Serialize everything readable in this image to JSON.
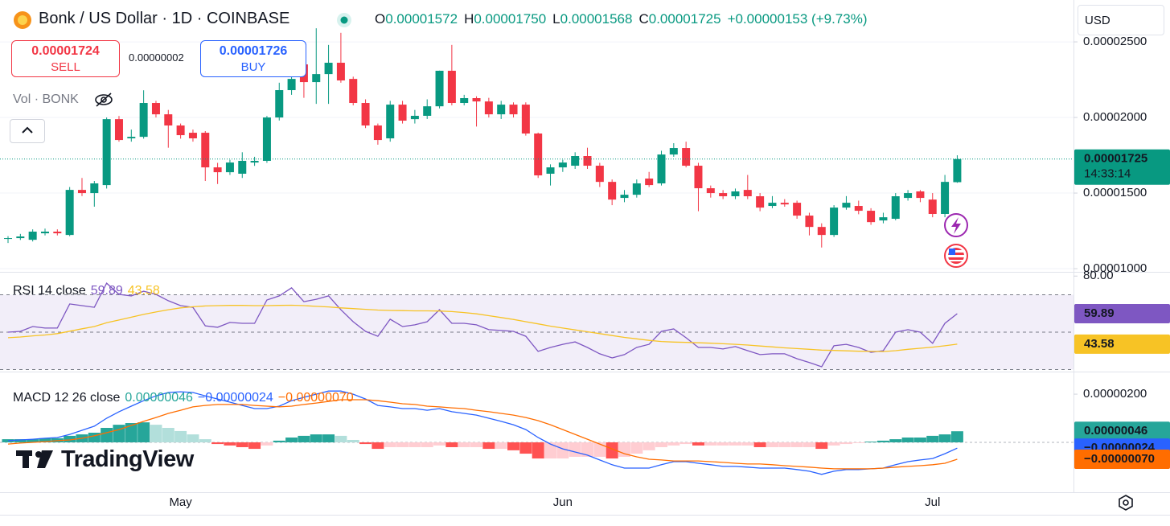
{
  "chart_data": [
    {
      "type": "candlestick",
      "title": "Bonk / US Dollar · 1D · COINBASE",
      "ohlc_legend": [
        {
          "label": "O",
          "value": "0.00001572"
        },
        {
          "label": "H",
          "value": "0.00001750"
        },
        {
          "label": "L",
          "value": "0.00001568"
        },
        {
          "label": "C",
          "value": "0.00001725"
        }
      ],
      "change": "+0.00000153 (+9.73%)",
      "sell": {
        "price": "0.00001724",
        "label": "SELL"
      },
      "spread": "0.00000002",
      "buy": {
        "price": "0.00001726",
        "label": "BUY"
      },
      "volume_label": "Vol · BONK",
      "currency": "USD",
      "last_price_label": "0.00001725",
      "countdown": "14:33:14",
      "brand": "TradingView",
      "up_color": "#089981",
      "down_color": "#f23645",
      "categories": [
        null,
        null,
        null,
        null,
        null,
        null,
        null,
        null,
        null,
        null,
        null,
        null,
        null,
        null,
        "May",
        null,
        null,
        null,
        null,
        null,
        null,
        null,
        null,
        null,
        null,
        null,
        null,
        null,
        null,
        null,
        null,
        null,
        null,
        null,
        null,
        null,
        null,
        null,
        null,
        null,
        null,
        null,
        null,
        null,
        null,
        "Jun",
        null,
        null,
        null,
        null,
        null,
        null,
        null,
        null,
        null,
        null,
        null,
        null,
        null,
        null,
        null,
        null,
        null,
        null,
        null,
        null,
        null,
        null,
        null,
        null,
        null,
        null,
        null,
        null,
        null,
        "Jul",
        null,
        null
      ],
      "open": [
        1.197e-05,
        1.202e-05,
        1.191e-05,
        1.234e-05,
        1.245e-05,
        1.223e-05,
        1.521e-05,
        1.5e-05,
        1.553e-05,
        1.989e-05,
        1.862e-05,
        1.872e-05,
        2.096e-05,
        2.021e-05,
        1.947e-05,
        1.899e-05,
        1.899e-05,
        1.67e-05,
        1.638e-05,
        1.628e-05,
        1.702e-05,
        1.713e-05,
        2e-05,
        2.181e-05,
        2.351e-05,
        2.234e-05,
        2.287e-05,
        2.362e-05,
        2.255e-05,
        2.096e-05,
        1.947e-05,
        1.862e-05,
        2.085e-05,
        1.989e-05,
        2.011e-05,
        2.074e-05,
        2.309e-05,
        2.096e-05,
        2.128e-05,
        2.106e-05,
        2.021e-05,
        2.085e-05,
        2.085e-05,
        1.894e-05,
        1.628e-05,
        1.67e-05,
        1.681e-05,
        1.745e-05,
        1.681e-05,
        1.574e-05,
        1.468e-05,
        1.489e-05,
        1.596e-05,
        1.564e-05,
        1.755e-05,
        1.798e-05,
        1.681e-05,
        1.532e-05,
        1.5e-05,
        1.479e-05,
        1.521e-05,
        1.479e-05,
        1.415e-05,
        1.436e-05,
        1.436e-05,
        1.351e-05,
        1.276e-05,
        1.223e-05,
        1.404e-05,
        1.415e-05,
        1.383e-05,
        1.319e-05,
        1.33e-05,
        1.468e-05,
        1.511e-05,
        1.457e-05,
        1.362e-05,
        1.572e-05
      ],
      "high": [
        1.215e-05,
        1.23e-05,
        1.26e-05,
        1.265e-05,
        1.26e-05,
        1.54e-05,
        1.6e-05,
        1.58e-05,
        2e-05,
        2.01e-05,
        1.92e-05,
        2.18e-05,
        2.11e-05,
        2.05e-05,
        1.96e-05,
        1.92e-05,
        1.91e-05,
        1.7e-05,
        1.72e-05,
        1.77e-05,
        1.74e-05,
        2.01e-05,
        2.23e-05,
        2.33e-05,
        2.48e-05,
        2.59e-05,
        2.48e-05,
        2.56e-05,
        2.27e-05,
        2.12e-05,
        1.96e-05,
        2.11e-05,
        2.11e-05,
        2.05e-05,
        2.12e-05,
        2.31e-05,
        2.48e-05,
        2.15e-05,
        2.14e-05,
        2.13e-05,
        2.11e-05,
        2.1e-05,
        2.1e-05,
        1.9e-05,
        1.69e-05,
        1.72e-05,
        1.77e-05,
        1.8e-05,
        1.7e-05,
        1.59e-05,
        1.52e-05,
        1.59e-05,
        1.64e-05,
        1.78e-05,
        1.83e-05,
        1.84e-05,
        1.7e-05,
        1.55e-05,
        1.52e-05,
        1.53e-05,
        1.62e-05,
        1.5e-05,
        1.48e-05,
        1.46e-05,
        1.45e-05,
        1.37e-05,
        1.3e-05,
        1.42e-05,
        1.48e-05,
        1.45e-05,
        1.4e-05,
        1.37e-05,
        1.5e-05,
        1.52e-05,
        1.52e-05,
        1.5e-05,
        1.62e-05,
        1.75e-05
      ],
      "low": [
        1.17e-05,
        1.19e-05,
        1.18e-05,
        1.22e-05,
        1.22e-05,
        1.215e-05,
        1.48e-05,
        1.41e-05,
        1.53e-05,
        1.84e-05,
        1.84e-05,
        1.86e-05,
        2e-05,
        1.8e-05,
        1.86e-05,
        1.84e-05,
        1.58e-05,
        1.56e-05,
        1.62e-05,
        1.6e-05,
        1.68e-05,
        1.7e-05,
        1.98e-05,
        2.15e-05,
        2.13e-05,
        2.09e-05,
        2.09e-05,
        2.23e-05,
        2.08e-05,
        1.93e-05,
        1.82e-05,
        1.84e-05,
        1.96e-05,
        1.96e-05,
        1.99e-05,
        2.06e-05,
        2.08e-05,
        2.08e-05,
        1.94e-05,
        2e-05,
        1.99e-05,
        2e-05,
        1.88e-05,
        1.6e-05,
        1.55e-05,
        1.64e-05,
        1.66e-05,
        1.66e-05,
        1.54e-05,
        1.42e-05,
        1.44e-05,
        1.47e-05,
        1.54e-05,
        1.55e-05,
        1.74e-05,
        1.67e-05,
        1.38e-05,
        1.47e-05,
        1.46e-05,
        1.46e-05,
        1.46e-05,
        1.38e-05,
        1.4e-05,
        1.41e-05,
        1.33e-05,
        1.22e-05,
        1.14e-05,
        1.21e-05,
        1.39e-05,
        1.36e-05,
        1.29e-05,
        1.3e-05,
        1.32e-05,
        1.45e-05,
        1.44e-05,
        1.34e-05,
        1.34e-05,
        1.568e-05
      ],
      "close": [
        1.202e-05,
        1.213e-05,
        1.245e-05,
        1.245e-05,
        1.234e-05,
        1.521e-05,
        1.5e-05,
        1.564e-05,
        1.989e-05,
        1.851e-05,
        1.872e-05,
        2.096e-05,
        2.021e-05,
        1.947e-05,
        1.883e-05,
        1.862e-05,
        1.67e-05,
        1.638e-05,
        1.702e-05,
        1.713e-05,
        1.713e-05,
        2e-05,
        2.181e-05,
        2.255e-05,
        2.234e-05,
        2.287e-05,
        2.362e-05,
        2.245e-05,
        2.096e-05,
        1.947e-05,
        1.851e-05,
        2.085e-05,
        1.979e-05,
        2.011e-05,
        2.074e-05,
        2.309e-05,
        2.096e-05,
        2.128e-05,
        2.106e-05,
        2.021e-05,
        2.085e-05,
        2.021e-05,
        1.894e-05,
        1.617e-05,
        1.67e-05,
        1.702e-05,
        1.745e-05,
        1.681e-05,
        1.574e-05,
        1.457e-05,
        1.489e-05,
        1.564e-05,
        1.553e-05,
        1.755e-05,
        1.798e-05,
        1.681e-05,
        1.532e-05,
        1.5e-05,
        1.479e-05,
        1.511e-05,
        1.479e-05,
        1.404e-05,
        1.436e-05,
        1.425e-05,
        1.351e-05,
        1.276e-05,
        1.223e-05,
        1.404e-05,
        1.436e-05,
        1.383e-05,
        1.308e-05,
        1.34e-05,
        1.479e-05,
        1.5e-05,
        1.468e-05,
        1.362e-05,
        1.574e-05,
        1.725e-05
      ],
      "ylim": [
        9.79e-06,
        2.777e-05
      ],
      "yticks": [
        {
          "value": 2.5e-05,
          "label": "0.00002500"
        },
        {
          "value": 2e-05,
          "label": "0.00002000"
        },
        {
          "value": 1.5e-05,
          "label": "0.00001500"
        },
        {
          "value": 1e-05,
          "label": "0.00001000"
        }
      ],
      "grid": true
    },
    {
      "type": "line",
      "title": "RSI 14 close",
      "series": [
        {
          "color": "#7e57c2",
          "value_label": "59.89",
          "values": [
            50.0,
            50.4,
            53.0,
            52.2,
            52.2,
            65.1,
            64.2,
            63.3,
            76.2,
            70.2,
            69.4,
            71.9,
            70.2,
            66.8,
            64.2,
            63.3,
            53.4,
            52.6,
            55.2,
            54.7,
            54.7,
            67.2,
            69.4,
            73.7,
            66.3,
            67.6,
            69.4,
            62.0,
            55.6,
            50.4,
            47.8,
            56.9,
            53.0,
            53.9,
            55.6,
            62.0,
            54.7,
            54.7,
            53.9,
            51.3,
            50.9,
            50.4,
            47.8,
            39.7,
            41.8,
            43.5,
            44.8,
            41.8,
            38.4,
            36.2,
            38.0,
            41.8,
            43.5,
            50.4,
            51.7,
            47.0,
            41.8,
            41.8,
            41.0,
            42.3,
            40.1,
            38.0,
            38.4,
            38.4,
            35.8,
            33.7,
            31.5,
            42.7,
            43.5,
            41.8,
            39.2,
            40.1,
            50.0,
            51.3,
            50.0,
            44.0,
            54.7,
            59.89
          ]
        },
        {
          "color": "#f7c325",
          "value_label": "43.58",
          "values": [
            47.0,
            47.4,
            48,
            48.5,
            49.2,
            50.5,
            51.8,
            53,
            55,
            56.5,
            58,
            59.5,
            60.8,
            62,
            63,
            63.6,
            64,
            64.2,
            64.3,
            64.3,
            64.2,
            64.2,
            64.3,
            64.4,
            64.2,
            63.8,
            63.5,
            63,
            62.6,
            62.2,
            61.8,
            61.6,
            61.5,
            61.4,
            61.4,
            61.3,
            61,
            60.5,
            59.8,
            58.8,
            57.8,
            56.8,
            55.6,
            54.4,
            53.2,
            52.2,
            51.2,
            50.2,
            49.2,
            48.2,
            47.2,
            46.4,
            45.6,
            45,
            44.7,
            44.5,
            44.3,
            44.1,
            43.8,
            43.5,
            43.1,
            42.6,
            42.1,
            41.6,
            41.2,
            40.8,
            40.4,
            40.2,
            40,
            39.8,
            39.7,
            39.6,
            40.1,
            40.8,
            41.4,
            42,
            42.7,
            43.58
          ]
        }
      ],
      "levels": [
        30,
        50,
        70
      ],
      "band_color": "#7e57c2",
      "ylim": [
        28.9,
        81.4
      ],
      "yticks": [
        {
          "value": 80,
          "label": "80.00"
        }
      ]
    },
    {
      "type": "macd",
      "title": "MACD 12 26 close",
      "histogram": {
        "value_label": "0.00000046",
        "colors": [
          "#26a69a",
          "#b2dfdb",
          "#ffcdd2",
          "#ff5252"
        ],
        "values": [
          1.3e-07,
          1.3e-07,
          1.3e-07,
          1.7e-07,
          1.7e-07,
          2.7e-07,
          3.3e-07,
          4e-07,
          6e-07,
          7.3e-07,
          8e-07,
          8.3e-07,
          7.3e-07,
          6e-07,
          4.7e-07,
          3.3e-07,
          1.3e-07,
          -7e-08,
          -1.3e-07,
          -2e-07,
          -2.7e-07,
          -1.3e-07,
          7e-08,
          2e-07,
          2.7e-07,
          3.3e-07,
          3.3e-07,
          2.7e-07,
          1e-07,
          -7e-08,
          -2.7e-07,
          -2e-07,
          -2e-07,
          -2e-07,
          -2e-07,
          -1.3e-07,
          -2e-07,
          -2e-07,
          -2e-07,
          -2.7e-07,
          -2.7e-07,
          -3.3e-07,
          -4.7e-07,
          -6.7e-07,
          -6.7e-07,
          -6.7e-07,
          -6e-07,
          -6e-07,
          -6e-07,
          -6.7e-07,
          -6e-07,
          -4.7e-07,
          -3.3e-07,
          -2e-07,
          -1.3e-07,
          -7e-08,
          -1.3e-07,
          -1.3e-07,
          -1.3e-07,
          -1.3e-07,
          -1.3e-07,
          -2e-07,
          -2e-07,
          -2e-07,
          -2e-07,
          -2e-07,
          -2.7e-07,
          -1.3e-07,
          -7e-08,
          -3e-08,
          3e-08,
          7e-08,
          1.3e-07,
          2e-07,
          2e-07,
          2.7e-07,
          3.3e-07,
          4.6e-07
        ]
      },
      "series": [
        {
          "color": "#2962ff",
          "value_label": "−0.00000024",
          "values": [
            7e-08,
            1e-07,
            1.3e-07,
            1.7e-07,
            2e-07,
            3.3e-07,
            5e-07,
            6.7e-07,
            1e-06,
            1.27e-06,
            1.5e-06,
            1.73e-06,
            1.93e-06,
            2.07e-06,
            2.1e-06,
            2.07e-06,
            1.93e-06,
            1.8e-06,
            1.67e-06,
            1.53e-06,
            1.4e-06,
            1.4e-06,
            1.5e-06,
            1.73e-06,
            1.87e-06,
            2e-06,
            2.13e-06,
            2.13e-06,
            2e-06,
            1.8e-06,
            1.53e-06,
            1.47e-06,
            1.4e-06,
            1.4e-06,
            1.33e-06,
            1.4e-06,
            1.27e-06,
            1.2e-06,
            1.13e-06,
            1e-06,
            8.7e-07,
            7.3e-07,
            5.3e-07,
            2e-07,
            -7e-08,
            -2.7e-07,
            -4e-07,
            -5.3e-07,
            -7.3e-07,
            -9.3e-07,
            -1.07e-06,
            -1.07e-06,
            -1.07e-06,
            -9.3e-07,
            -8e-07,
            -8e-07,
            -8.7e-07,
            -9.3e-07,
            -1e-06,
            -1e-06,
            -1.03e-06,
            -1.07e-06,
            -1.07e-06,
            -1.07e-06,
            -1.13e-06,
            -1.2e-06,
            -1.33e-06,
            -1.2e-06,
            -1.13e-06,
            -1.13e-06,
            -1.1e-06,
            -1.07e-06,
            -9.3e-07,
            -8e-07,
            -7.3e-07,
            -6.7e-07,
            -4.7e-07,
            -2.4e-07
          ]
        },
        {
          "color": "#ff6d00",
          "value_label": "−0.00000070",
          "values": [
            -7e-08,
            -3e-08,
            0,
            3e-08,
            7e-08,
            1e-07,
            1.7e-07,
            2.7e-07,
            4e-07,
            5.3e-07,
            7e-07,
            8.7e-07,
            1.03e-06,
            1.2e-06,
            1.33e-06,
            1.47e-06,
            1.53e-06,
            1.57e-06,
            1.57e-06,
            1.57e-06,
            1.53e-06,
            1.5e-06,
            1.47e-06,
            1.5e-06,
            1.57e-06,
            1.63e-06,
            1.7e-06,
            1.77e-06,
            1.77e-06,
            1.77e-06,
            1.73e-06,
            1.67e-06,
            1.6e-06,
            1.57e-06,
            1.5e-06,
            1.47e-06,
            1.43e-06,
            1.4e-06,
            1.33e-06,
            1.27e-06,
            1.2e-06,
            1.13e-06,
            1.03e-06,
            9e-07,
            7.3e-07,
            5.3e-07,
            3.3e-07,
            1.3e-07,
            -7e-08,
            -2.7e-07,
            -4.7e-07,
            -6e-07,
            -7e-07,
            -7.3e-07,
            -7.7e-07,
            -7.7e-07,
            -7.7e-07,
            -8e-07,
            -8.3e-07,
            -8.7e-07,
            -9e-07,
            -9e-07,
            -9.3e-07,
            -9.7e-07,
            -1e-06,
            -1.03e-06,
            -1.07e-06,
            -1.1e-06,
            -1.1e-06,
            -1.1e-06,
            -1.1e-06,
            -1.07e-06,
            -1.03e-06,
            -1e-06,
            -9.7e-07,
            -9.3e-07,
            -8.7e-07,
            -7e-07
          ]
        }
      ],
      "ylim": [
        -2.07e-06,
        2.87e-06
      ],
      "yticks": [
        {
          "value": 2e-06,
          "label": "0.00000200"
        }
      ]
    }
  ]
}
